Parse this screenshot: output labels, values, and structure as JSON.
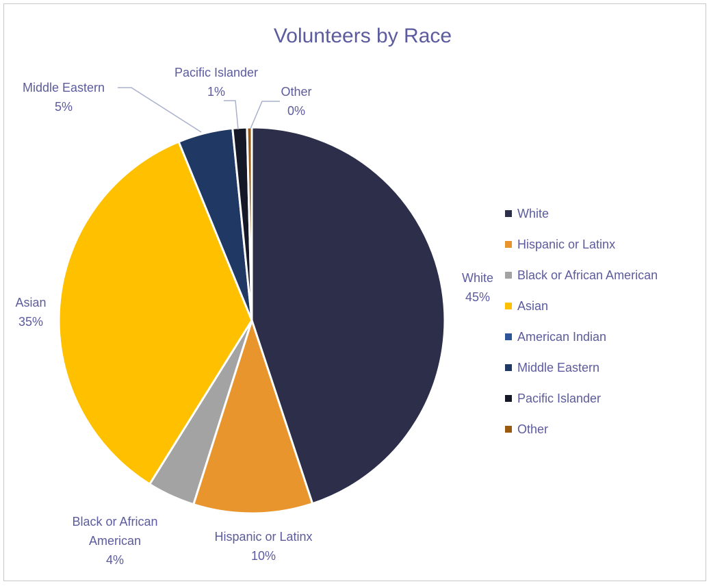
{
  "chart_data": {
    "type": "pie",
    "title": "Volunteers by Race",
    "slices": [
      {
        "name": "White",
        "value": 45,
        "label": "45%",
        "color": "#2c2e4a"
      },
      {
        "name": "Hispanic or Latinx",
        "value": 10,
        "label": "10%",
        "color": "#e8952e"
      },
      {
        "name": "Black or African American",
        "value": 4,
        "label": "4%",
        "color": "#a3a3a3"
      },
      {
        "name": "Asian",
        "value": 35,
        "label": "35%",
        "color": "#ffc000"
      },
      {
        "name": "American Indian",
        "value": 0,
        "label": "",
        "color": "#2e5596"
      },
      {
        "name": "Middle Eastern",
        "value": 4.6,
        "label": "5%",
        "color": "#1f3864"
      },
      {
        "name": "Pacific Islander",
        "value": 1.2,
        "label": "1%",
        "color": "#151826"
      },
      {
        "name": "Other",
        "value": 0.4,
        "label": "0%",
        "color": "#9a5b10"
      }
    ],
    "legend": {
      "position": "right",
      "entries": [
        "White",
        "Hispanic or Latinx",
        "Black or African American",
        "Asian",
        "American Indian",
        "Middle Eastern",
        "Pacific Islander",
        "Other"
      ]
    },
    "data_labels": [
      {
        "slice": "White",
        "lines": [
          "White",
          "45%"
        ]
      },
      {
        "slice": "Hispanic or Latinx",
        "lines": [
          "Hispanic or Latinx",
          "10%"
        ]
      },
      {
        "slice": "Black or African American",
        "lines": [
          "Black or African",
          "American",
          "4%"
        ]
      },
      {
        "slice": "Asian",
        "lines": [
          "Asian",
          "35%"
        ]
      },
      {
        "slice": "Middle Eastern",
        "lines": [
          "Middle Eastern",
          "5%"
        ]
      },
      {
        "slice": "Pacific Islander",
        "lines": [
          "Pacific Islander",
          "1%"
        ]
      },
      {
        "slice": "Other",
        "lines": [
          "Other",
          "0%"
        ]
      }
    ]
  }
}
